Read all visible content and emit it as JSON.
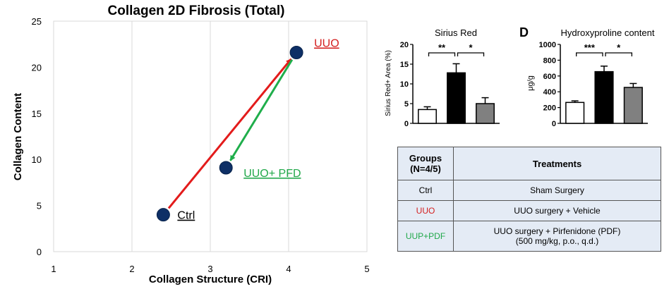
{
  "chart_data": [
    {
      "type": "scatter",
      "title": "Collagen 2D Fibrosis (Total)",
      "xlabel": "Collagen Structure (CRI)",
      "ylabel": "Collagen  Content",
      "xlim": [
        1,
        5
      ],
      "ylim": [
        0,
        25
      ],
      "xticks": [
        "1",
        "2",
        "3",
        "4",
        "5"
      ],
      "yticks": [
        "0",
        "5",
        "10",
        "15",
        "20",
        "25"
      ],
      "grid": true,
      "points": [
        {
          "label": "Ctrl",
          "x": 2.4,
          "y": 4.0,
          "label_color": "#000000"
        },
        {
          "label": "UUO",
          "x": 4.1,
          "y": 21.6,
          "label_color": "#d42020"
        },
        {
          "label": "UUO+ PFD",
          "x": 3.2,
          "y": 9.1,
          "label_color": "#21a84a"
        }
      ],
      "arrows": [
        {
          "from": "Ctrl",
          "to": "UUO",
          "color": "#e31b1b"
        },
        {
          "from": "UUO",
          "to": "UUO+ PFD",
          "color": "#1fae4b"
        }
      ],
      "marker_color": "#0e2f66"
    },
    {
      "type": "bar",
      "title": "Sirius Red",
      "ylabel": "Sirius Red+ Area (%)",
      "ylim": [
        0,
        20
      ],
      "yticks": [
        "0",
        "5",
        "10",
        "15",
        "20"
      ],
      "values": [
        3.5,
        12.8,
        5.0
      ],
      "errors": [
        0.7,
        2.3,
        1.5
      ],
      "fills": [
        "#ffffff",
        "#000000",
        "#808080"
      ],
      "significance": [
        {
          "from": 0,
          "to": 1,
          "label": "**"
        },
        {
          "from": 1,
          "to": 2,
          "label": "*"
        }
      ]
    },
    {
      "type": "bar",
      "panel_label": "D",
      "title": "Hydroxyproline content",
      "ylabel": "μg/g",
      "ylim": [
        0,
        1000
      ],
      "yticks": [
        "0",
        "200",
        "400",
        "600",
        "800",
        "1000"
      ],
      "values": [
        265,
        655,
        455
      ],
      "errors": [
        20,
        70,
        50
      ],
      "fills": [
        "#ffffff",
        "#000000",
        "#808080"
      ],
      "significance": [
        {
          "from": 0,
          "to": 1,
          "label": "***"
        },
        {
          "from": 1,
          "to": 2,
          "label": "*"
        }
      ]
    }
  ],
  "table": {
    "header": {
      "col1_line1": "Groups",
      "col1_line2": "(N=4/5)",
      "col2": "Treatments"
    },
    "rows": [
      {
        "group": "Ctrl",
        "group_color": "#000000",
        "treatment": "Sham Surgery"
      },
      {
        "group": "UUO",
        "group_color": "#d42020",
        "treatment": "UUO surgery + Vehicle"
      },
      {
        "group": "UUP+PDF",
        "group_color": "#21a84a",
        "treatment": "UUO surgery + Pirfenidone (PDF)",
        "treatment_line2": "(500 mg/kg, p.o., q.d.)"
      }
    ]
  }
}
